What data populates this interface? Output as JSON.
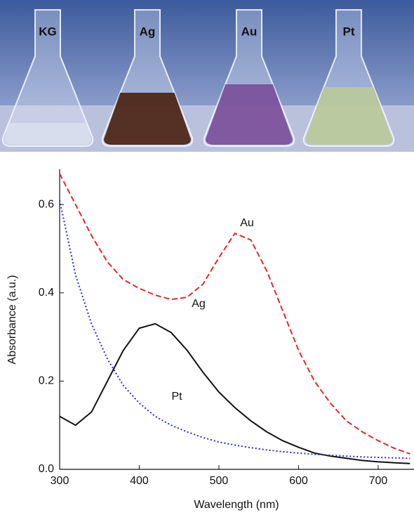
{
  "photo": {
    "labels": [
      "KG",
      "Ag",
      "Au",
      "Pt"
    ]
  },
  "chart_data": {
    "type": "line",
    "xlabel": "Wavelength (nm)",
    "ylabel": "Absorbance (a.u.)",
    "x": [
      300,
      320,
      340,
      360,
      380,
      400,
      420,
      440,
      460,
      480,
      500,
      520,
      540,
      560,
      580,
      600,
      620,
      640,
      660,
      680,
      700,
      720,
      740
    ],
    "series": [
      {
        "name": "Au",
        "color": "#e8272a",
        "style": "dashed",
        "values": [
          0.67,
          0.6,
          0.53,
          0.47,
          0.43,
          0.41,
          0.395,
          0.385,
          0.39,
          0.42,
          0.48,
          0.535,
          0.52,
          0.45,
          0.36,
          0.27,
          0.2,
          0.15,
          0.11,
          0.085,
          0.065,
          0.048,
          0.035
        ]
      },
      {
        "name": "Ag",
        "color": "#111111",
        "style": "solid",
        "values": [
          0.12,
          0.1,
          0.13,
          0.2,
          0.27,
          0.32,
          0.33,
          0.31,
          0.27,
          0.22,
          0.175,
          0.14,
          0.11,
          0.085,
          0.065,
          0.05,
          0.037,
          0.03,
          0.025,
          0.02,
          0.017,
          0.015,
          0.013
        ]
      },
      {
        "name": "Pt",
        "color": "#2a2ad0",
        "style": "dotted",
        "values": [
          0.61,
          0.44,
          0.33,
          0.25,
          0.19,
          0.15,
          0.12,
          0.1,
          0.085,
          0.072,
          0.062,
          0.055,
          0.049,
          0.044,
          0.04,
          0.037,
          0.034,
          0.032,
          0.03,
          0.028,
          0.027,
          0.026,
          0.025
        ]
      }
    ],
    "xlim": [
      300,
      745
    ],
    "xticks": [
      300,
      400,
      500,
      600,
      700
    ],
    "ylim": [
      0,
      0.68
    ],
    "yticks": [
      {
        "value": 0,
        "label": "0.0"
      },
      0.2,
      0.4,
      0.6
    ]
  }
}
